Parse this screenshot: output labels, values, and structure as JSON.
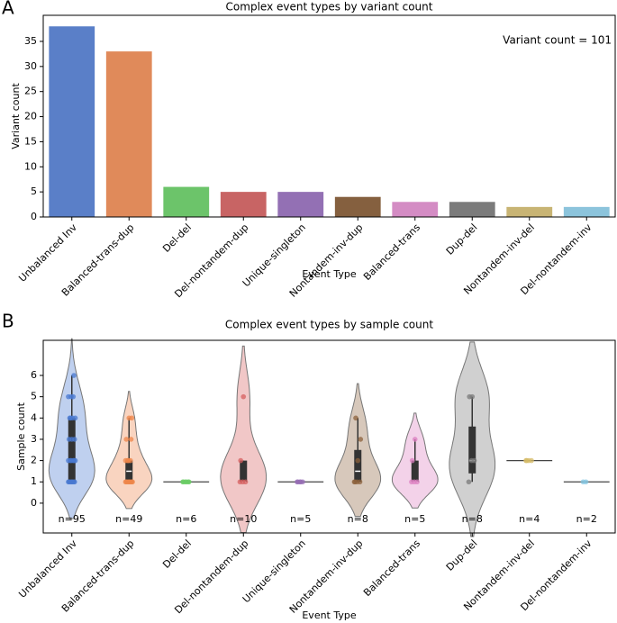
{
  "chart_data": [
    {
      "type": "bar",
      "panel": "A",
      "title": "Complex event types by variant count",
      "x_label": "Event Type",
      "y_label": "Variant count",
      "annotation": "Variant count = 101",
      "categories": [
        "Unbalanced Inv",
        "Balanced-trans-dup",
        "Del-del",
        "Del-nontandem-dup",
        "Unique-singleton",
        "Nontandem-inv-dup",
        "Balanced-trans",
        "Dup-del",
        "Nontandem-inv-del",
        "Del-nontandem-inv"
      ],
      "values": [
        38,
        33,
        6,
        5,
        5,
        4,
        3,
        3,
        2,
        2
      ],
      "colors": [
        "#5a7fc8",
        "#e08a5a",
        "#6cc46a",
        "#c86464",
        "#9370b4",
        "#85603f",
        "#d48cc4",
        "#7b7b7b",
        "#c8b474",
        "#8cc4dc"
      ],
      "ylim": [
        0,
        40.2
      ],
      "yticks": [
        0,
        5,
        10,
        15,
        20,
        25,
        30,
        35
      ]
    },
    {
      "type": "violin",
      "panel": "B",
      "title": "Complex event types by sample count",
      "x_label": "Event Type",
      "y_label": "Sample count",
      "categories": [
        "Unbalanced Inv",
        "Balanced-trans-dup",
        "Del-del",
        "Del-nontandem-dup",
        "Unique-singleton",
        "Nontandem-inv-dup",
        "Balanced-trans",
        "Dup-del",
        "Nontandem-inv-del",
        "Del-nontandem-inv"
      ],
      "n_labels": [
        "n=95",
        "n=49",
        "n=6",
        "n=10",
        "n=5",
        "n=8",
        "n=5",
        "n=8",
        "n=4",
        "n=2"
      ],
      "colors": [
        "#4878d0",
        "#ee854a",
        "#6acc64",
        "#d65f5f",
        "#956cb4",
        "#8c613c",
        "#dc7ec0",
        "#797979",
        "#d5bb67",
        "#82c6e2"
      ],
      "points": [
        [
          1,
          1,
          1,
          1,
          1,
          1,
          1,
          1,
          2,
          2,
          2,
          2,
          2,
          2,
          3,
          3,
          3,
          4,
          4,
          4,
          4,
          5,
          5,
          5,
          6
        ],
        [
          1,
          1,
          1,
          1,
          1,
          1,
          1,
          1,
          1,
          2,
          2,
          2,
          2,
          3,
          3,
          4,
          4
        ],
        [
          1,
          1,
          1,
          1,
          1,
          1
        ],
        [
          1,
          1,
          1,
          2,
          5
        ],
        [
          1,
          1,
          1,
          1,
          1
        ],
        [
          1,
          1,
          1,
          1,
          2,
          3,
          4
        ],
        [
          1,
          1,
          1,
          2,
          3
        ],
        [
          1,
          2,
          2,
          5,
          5
        ],
        [
          2,
          2,
          2,
          2
        ],
        [
          1,
          1
        ]
      ],
      "boxes": [
        {
          "low": 1,
          "q1": 1,
          "median": 2,
          "q3": 4,
          "high": 6
        },
        {
          "low": 1,
          "q1": 1,
          "median": 1.5,
          "q3": 2,
          "high": 4
        },
        null,
        {
          "low": 1,
          "q1": 1,
          "median": 1,
          "q3": 2,
          "high": 2
        },
        null,
        {
          "low": 1,
          "q1": 1,
          "median": 1.5,
          "q3": 2.5,
          "high": 4
        },
        {
          "low": 1,
          "q1": 1,
          "median": 1,
          "q3": 2,
          "high": 3
        },
        {
          "low": 1,
          "q1": 1.4,
          "median": 2,
          "q3": 3.6,
          "high": 5
        },
        null,
        null
      ],
      "ylim": [
        -1.4,
        7.65
      ],
      "yticks": [
        0,
        1,
        2,
        3,
        4,
        5,
        6
      ]
    }
  ]
}
